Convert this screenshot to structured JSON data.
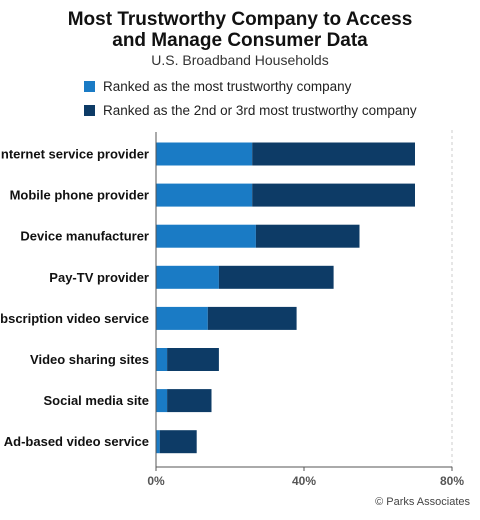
{
  "title_line1": "Most Trustworthy Company to Access",
  "title_line2": "and Manage Consumer Data",
  "subtitle": "U.S. Broadband Households",
  "credit": "© Parks Associates",
  "colors": {
    "primary": "#1a7bc5",
    "secondary": "#0d3b66",
    "axis": "#555555",
    "grid": "#cccccc",
    "tick_text": "#555555"
  },
  "chart_data": {
    "type": "bar",
    "orientation": "horizontal",
    "stacked": true,
    "categories": [
      "Internet service provider",
      "Mobile phone provider",
      "Device manufacturer",
      "Pay-TV provider",
      "Subscription video service",
      "Video sharing sites",
      "Social media site",
      "Ad-based video service"
    ],
    "series": [
      {
        "name": "Ranked as the most trustworthy company",
        "color": "#1a7bc5",
        "values": [
          26,
          26,
          27,
          17,
          14,
          3,
          3,
          1
        ]
      },
      {
        "name": "Ranked as the 2nd or 3rd most trustworthy company",
        "color": "#0d3b66",
        "values": [
          44,
          44,
          28,
          31,
          24,
          14,
          12,
          10
        ]
      }
    ],
    "xlim": [
      0,
      80
    ],
    "xticks": [
      0,
      40,
      80
    ],
    "xtick_labels": [
      "0%",
      "40%",
      "80%"
    ],
    "legend_position": "top"
  }
}
